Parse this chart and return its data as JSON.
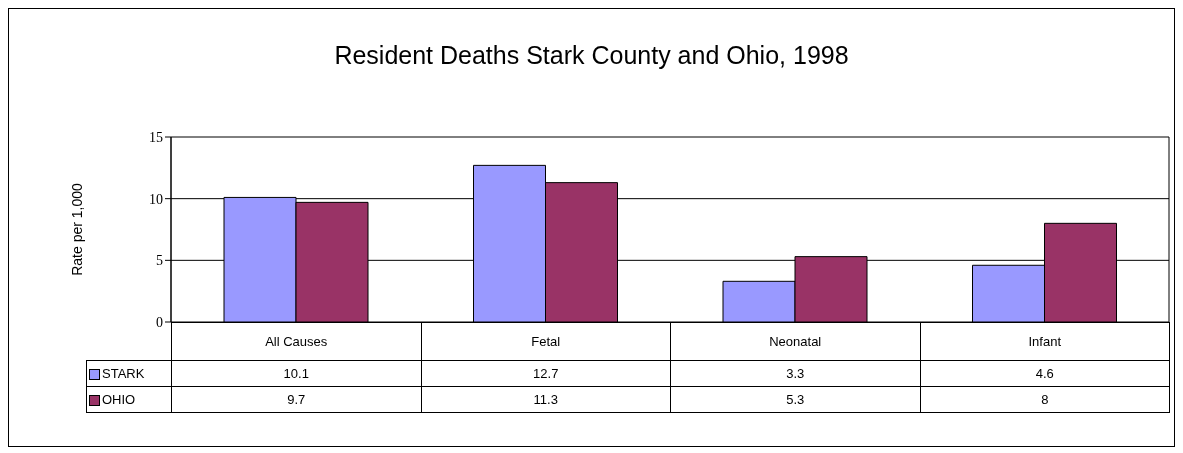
{
  "chart_data": {
    "type": "bar",
    "title": "Resident Deaths Stark County and Ohio, 1998",
    "ylabel": "Rate per 1,000",
    "categories": [
      "All Causes",
      "Fetal",
      "Neonatal",
      "Infant"
    ],
    "series": [
      {
        "name": "STARK",
        "color": "#9999ff",
        "values": [
          10.1,
          12.7,
          3.3,
          4.6
        ]
      },
      {
        "name": "OHIO",
        "color": "#993366",
        "values": [
          9.7,
          11.3,
          5.3,
          8
        ]
      }
    ],
    "ylim": [
      0,
      15
    ],
    "yticks": [
      0,
      5,
      10,
      15
    ],
    "grid": "y",
    "legend": "bottom left",
    "data_labels": true
  }
}
